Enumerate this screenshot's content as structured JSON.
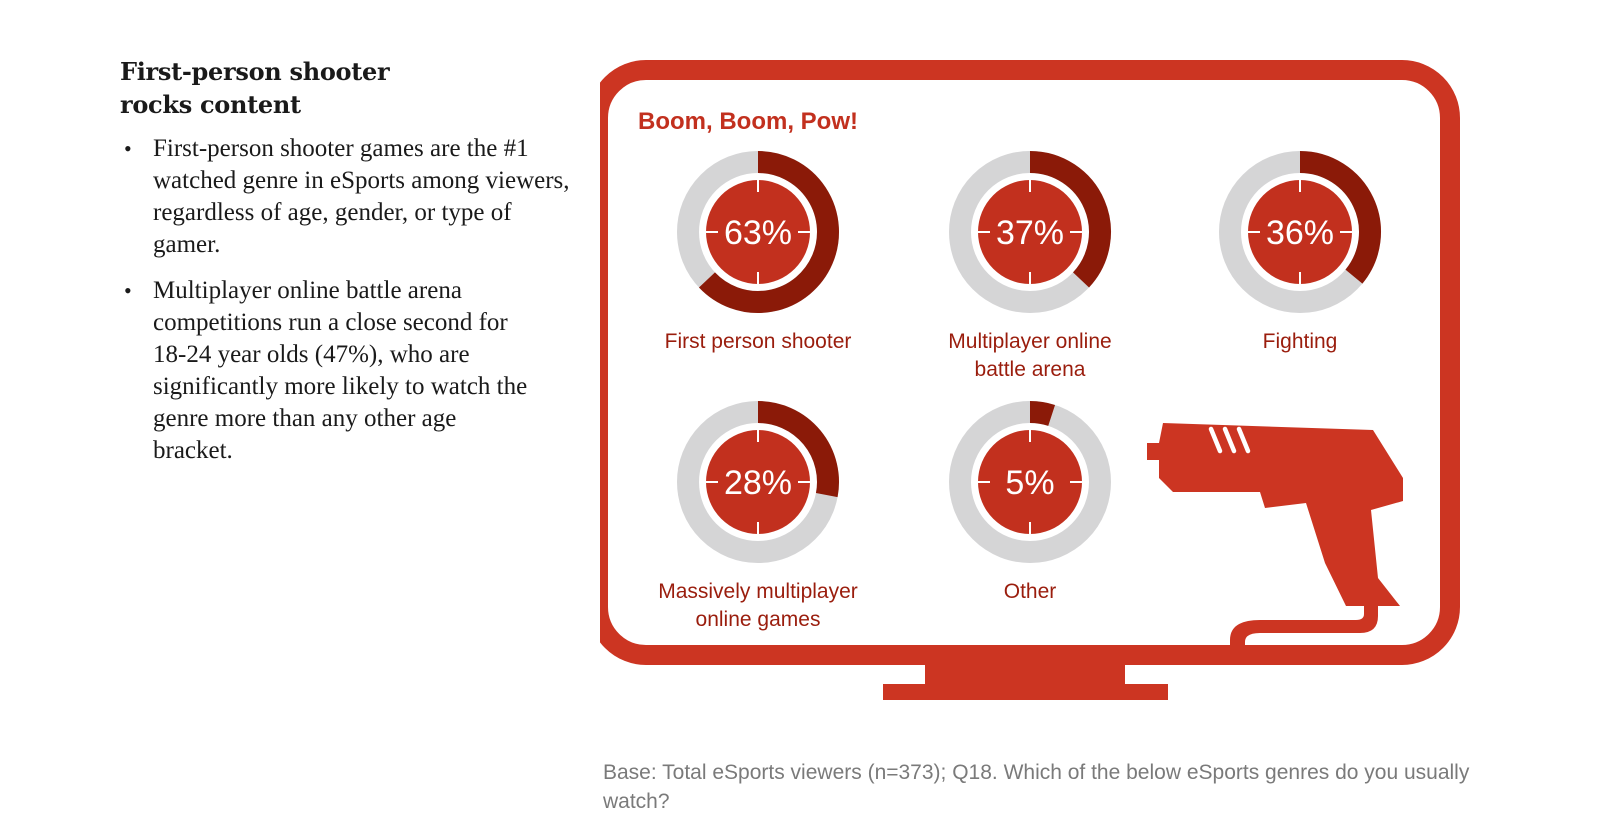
{
  "left_panel": {
    "heading_line1": "First-person shooter",
    "heading_line2": "rocks content",
    "bullet1": "First-person shooter games are the #1 watched genre in eSports among viewers, regardless of age, gender, or type of gamer.",
    "bullet2": "Multiplayer online battle arena competitions run a close second for 18-24 year olds (47%), who are significantly more likely to watch the genre more than any other age bracket."
  },
  "chart_data": {
    "type": "donut",
    "title": "Boom, Boom, Pow!",
    "unit": "%",
    "series": [
      {
        "label_lines": [
          "First person shooter"
        ],
        "value": 63,
        "display": "63%"
      },
      {
        "label_lines": [
          "Multiplayer online",
          "battle arena"
        ],
        "value": 37,
        "display": "37%"
      },
      {
        "label_lines": [
          "Fighting"
        ],
        "value": 36,
        "display": "36%"
      },
      {
        "label_lines": [
          "Massively multiplayer",
          "online games"
        ],
        "value": 28,
        "display": "28%"
      },
      {
        "label_lines": [
          "Other"
        ],
        "value": 5,
        "display": "5%"
      }
    ]
  },
  "footnote": "Base: Total eSports viewers (n=373); Q18. Which of the below eSports genres do you usually watch?",
  "colors": {
    "frame_red": "#cc3522",
    "inner_red": "#c2301e",
    "arc_dark_red": "#8b1a08",
    "track_gray": "#d5d5d6",
    "label_red": "#9a1d0d",
    "title_red": "#c2301e",
    "note_gray": "#7a7a7a"
  },
  "icons": [
    "tv-monitor-icon",
    "ray-gun-icon"
  ]
}
